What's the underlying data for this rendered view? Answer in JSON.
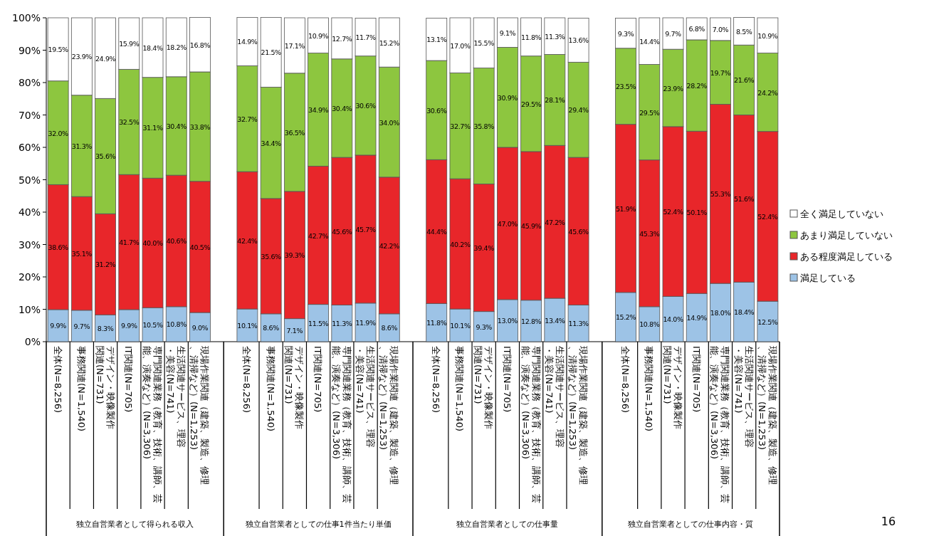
{
  "chart_data": {
    "type": "bar",
    "stacked": true,
    "data_labels": false,
    "legend": "right",
    "grid": false,
    "categories": [
      "全体(N=8,256)",
      "事務関連(N=1,540)",
      "デザイン・映像製作関連(N=731)",
      "IT関連(N=705)",
      "専門関連業務（教育、技術、講師、芸能、演奏など）(N=3,306)",
      "生活関連サービス、理容・美容(N=741)",
      "現場作業関連（建築、製造、修理、清掃など）(N=1,253)",
      null,
      "全体(N=8,256)",
      "事務関連(N=1,540)",
      "デザイン・映像製作関連(N=731)",
      "IT関連(N=705)",
      "専門関連業務（教育、技術、講師、芸能、演奏など）(N=3,306)",
      "生活関連サービス、理容・美容(N=741)",
      "現場作業関連（建築、製造、修理、清掃など）(N=1,253)",
      null,
      "全体(N=8,256)",
      "事務関連(N=1,540)",
      "デザイン・映像製作関連(N=731)",
      "IT関連(N=705)",
      "専門関連業務（教育、技術、講師、芸能、演奏など）(N=3,306)",
      "生活関連サービス、理容・美容(N=741)",
      "現場作業関連（建築、製造、修理、清掃など）(N=1,253)",
      null,
      "全体(N=8,256)",
      "事務関連(N=1,540)",
      "デザイン・映像製作関連(N=731)",
      "IT関連(N=705)",
      "専門関連業務（教育、技術、講師、芸能、演奏など）(N=3,306)",
      "生活関連サービス、理容・美容(N=741)",
      "現場作業関連（建築、製造、修理、清掃など）(N=1,253)"
    ],
    "ylim": [
      0,
      100
    ],
    "yticks": [
      {
        "value": 0,
        "label": "0%"
      },
      {
        "value": 10,
        "label": "10%"
      },
      {
        "value": 20,
        "label": "20%"
      },
      {
        "value": 30,
        "label": "30%"
      },
      {
        "value": 40,
        "label": "40%"
      },
      {
        "value": 50,
        "label": "50%"
      },
      {
        "value": 60,
        "label": "60%"
      },
      {
        "value": 70,
        "label": "70%"
      },
      {
        "value": 80,
        "label": "80%"
      },
      {
        "value": 90,
        "label": "90%"
      },
      {
        "value": 100,
        "label": "100%"
      }
    ],
    "series": [
      {
        "name": "満足している",
        "color": "#9dc3e6",
        "values": [
          9.9,
          9.7,
          8.3,
          9.9,
          10.5,
          10.8,
          9.0,
          null,
          10.1,
          8.6,
          7.1,
          11.5,
          11.3,
          11.9,
          8.6,
          null,
          11.8,
          10.1,
          9.3,
          13.0,
          12.8,
          13.4,
          11.3,
          null,
          15.2,
          10.8,
          14.0,
          14.9,
          18.0,
          18.4,
          12.5
        ],
        "value_labels": [
          "9.9%",
          "9.7%",
          "8.3%",
          "9.9%",
          "10.5%",
          "10.8%",
          "9.0%",
          null,
          "10.1%",
          "8.6%",
          "7.1%",
          "11.5%",
          "11.3%",
          "11.9%",
          "8.6%",
          null,
          "11.8%",
          "10.1%",
          "9.3%",
          "13.0%",
          "12.8%",
          "13.4%",
          "11.3%",
          null,
          "15.2%",
          "10.8%",
          "14.0%",
          "14.9%",
          "18.0%",
          "18.4%",
          "12.5%"
        ]
      },
      {
        "name": "ある程度満足している",
        "color": "#e8262a",
        "values": [
          38.6,
          35.1,
          31.2,
          41.7,
          40.0,
          40.6,
          40.5,
          null,
          42.4,
          35.6,
          39.3,
          42.7,
          45.6,
          45.7,
          42.2,
          null,
          44.4,
          40.2,
          39.4,
          47.0,
          45.9,
          47.2,
          45.6,
          null,
          51.9,
          45.3,
          52.4,
          50.1,
          55.3,
          51.6,
          52.4
        ],
        "value_labels": [
          "38.6%",
          "35.1%",
          "31.2%",
          "41.7%",
          "40.0%",
          "40.6%",
          "40.5%",
          null,
          "42.4%",
          "35.6%",
          "39.3%",
          "42.7%",
          "45.6%",
          "45.7%",
          "42.2%",
          null,
          "44.4%",
          "40.2%",
          "39.4%",
          "47.0%",
          "45.9%",
          "47.2%",
          "45.6%",
          null,
          "51.9%",
          "45.3%",
          "52.4%",
          "50.1%",
          "55.3%",
          "51.6%",
          "52.4%"
        ]
      },
      {
        "name": "あまり満足していない",
        "color": "#8dc63f",
        "values": [
          32.0,
          31.3,
          35.6,
          32.5,
          31.1,
          30.4,
          33.8,
          null,
          32.7,
          34.4,
          36.5,
          34.9,
          30.4,
          30.6,
          34.0,
          null,
          30.6,
          32.7,
          35.8,
          30.9,
          29.5,
          28.1,
          29.4,
          null,
          23.5,
          29.5,
          23.9,
          28.2,
          19.7,
          21.6,
          24.2
        ],
        "value_labels": [
          "32.0%",
          "31.3%",
          "35.6%",
          "32.5%",
          "31.1%",
          "30.4%",
          "33.8%",
          null,
          "32.7%",
          "34.4%",
          "36.5%",
          "34.9%",
          "30.4%",
          "30.6%",
          "34.0%",
          null,
          "30.6%",
          "32.7%",
          "35.8%",
          "30.9%",
          "29.5%",
          "28.1%",
          "29.4%",
          null,
          "23.5%",
          "29.5%",
          "23.9%",
          "28.2%",
          "19.7%",
          "21.6%",
          "24.2%"
        ]
      },
      {
        "name": "全く満足していない",
        "color": "#ffffff",
        "values": [
          19.5,
          23.9,
          24.9,
          15.9,
          18.4,
          18.2,
          16.8,
          null,
          14.9,
          21.5,
          17.1,
          10.9,
          12.7,
          11.7,
          15.2,
          null,
          13.1,
          17.0,
          15.5,
          9.1,
          11.8,
          11.3,
          13.6,
          null,
          9.3,
          14.4,
          9.7,
          6.8,
          7.0,
          8.5,
          10.9
        ],
        "value_labels": [
          "19.5%",
          "23.9%",
          "24.9%",
          "15.9%",
          "18.4%",
          "18.2%",
          "16.8%",
          null,
          "14.9%",
          "21.5%",
          "17.1%",
          "10.9%",
          "12.7%",
          "11.7%",
          "15.2%",
          null,
          "13.1%",
          "17.0%",
          "15.5%",
          "9.1%",
          "11.8%",
          "11.3%",
          "13.6%",
          null,
          "9.3%",
          "14.4%",
          "9.7%",
          "6.8%",
          "7.0%",
          "8.5%",
          "10.9%"
        ]
      }
    ],
    "annotations": [
      "独立自営業者として得られる収入",
      "独立自営業者としての仕事1件当たり単価",
      "独立自営業者としての仕事量",
      "独立自営業者としての仕事内容・質",
      "16"
    ]
  }
}
